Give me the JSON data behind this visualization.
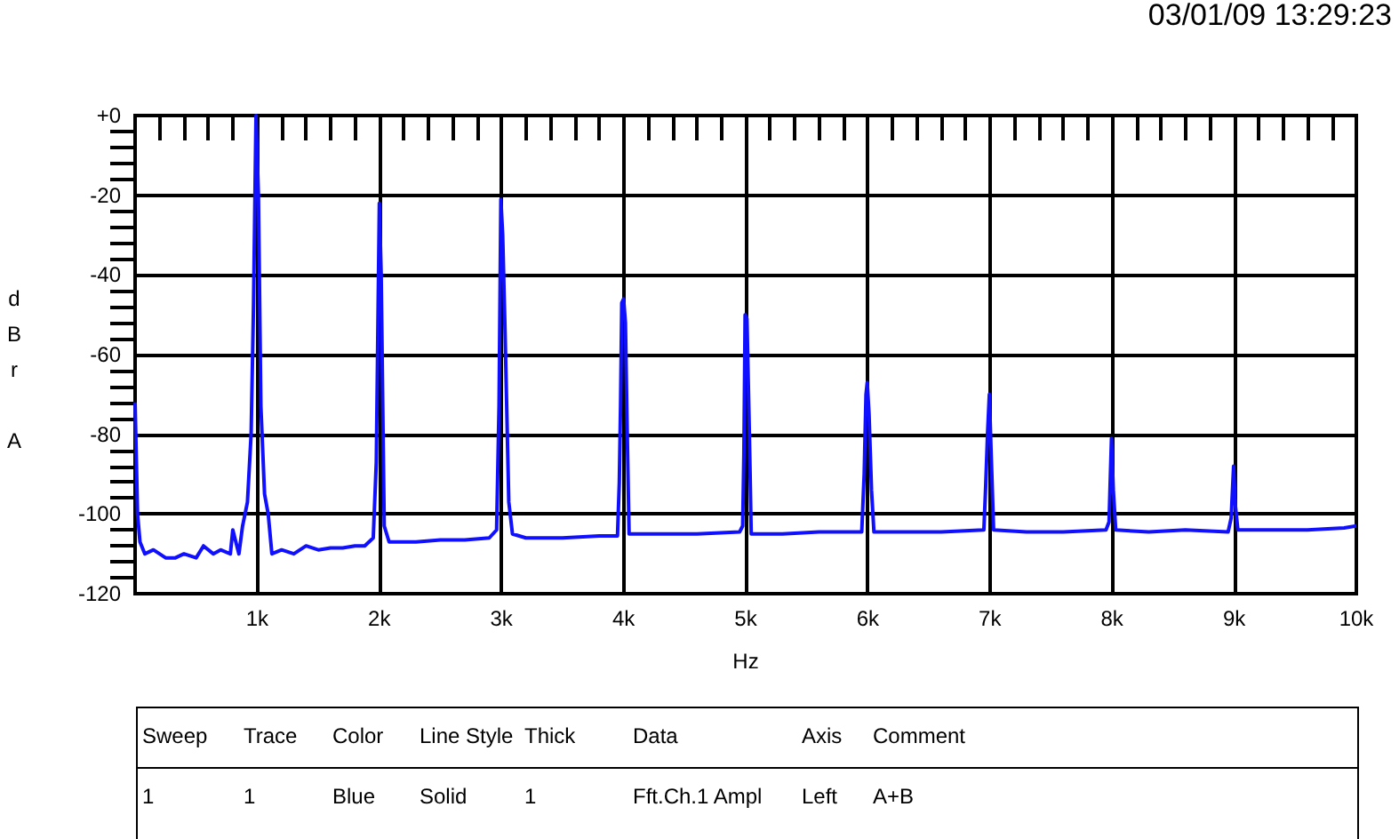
{
  "chart_data": {
    "type": "line",
    "xlabel": "Hz",
    "ylabel": "dBr A",
    "annotations": [
      "03/01/09 13:29:23",
      "Sweep",
      "Trace",
      "Color",
      "Line Style",
      "Thick",
      "Data",
      "Axis",
      "Comment",
      "1",
      "1",
      "Blue",
      "Solid",
      "1",
      "Fft.Ch.1 Ampl",
      "Left",
      "A+B"
    ],
    "xlim": [
      0,
      10000
    ],
    "ylim": [
      -120,
      0
    ],
    "xticks": [
      {
        "value": 1000,
        "label": "1k"
      },
      {
        "value": 2000,
        "label": "2k"
      },
      {
        "value": 3000,
        "label": "3k"
      },
      {
        "value": 4000,
        "label": "4k"
      },
      {
        "value": 5000,
        "label": "5k"
      },
      {
        "value": 6000,
        "label": "6k"
      },
      {
        "value": 7000,
        "label": "7k"
      },
      {
        "value": 8000,
        "label": "8k"
      },
      {
        "value": 9000,
        "label": "9k"
      },
      {
        "value": 10000,
        "label": "10k"
      }
    ],
    "yticks": [
      {
        "value": 0,
        "label": "+0"
      },
      -20,
      -40,
      -60,
      -80,
      -100,
      -120
    ],
    "grid": true,
    "marker": "none",
    "line_style": "solid",
    "series": [
      {
        "color": "#1010ff",
        "x": [
          0,
          20,
          40,
          80,
          150,
          250,
          330,
          400,
          500,
          560,
          640,
          700,
          780,
          800,
          850,
          880,
          920,
          950,
          970,
          990,
          1010,
          1030,
          1060,
          1090,
          1120,
          1200,
          1300,
          1400,
          1500,
          1600,
          1700,
          1800,
          1880,
          1950,
          1975,
          1990,
          2000,
          2015,
          2040,
          2080,
          2300,
          2500,
          2700,
          2900,
          2960,
          2980,
          2995,
          3010,
          3030,
          3060,
          3090,
          3200,
          3500,
          3800,
          3950,
          3965,
          3975,
          3985,
          4000,
          4015,
          4030,
          4045,
          4300,
          4600,
          4950,
          4975,
          4985,
          4995,
          5010,
          5030,
          5045,
          5300,
          5600,
          5950,
          5970,
          5985,
          5995,
          6010,
          6030,
          6050,
          6300,
          6600,
          6950,
          6965,
          6980,
          6995,
          7010,
          7030,
          7300,
          7600,
          7950,
          7975,
          7995,
          8010,
          8030,
          8300,
          8600,
          8950,
          8975,
          8995,
          9010,
          9030,
          9300,
          9600,
          9900,
          10000
        ],
        "values": [
          -72,
          -100,
          -107,
          -110,
          -109,
          -111,
          -111,
          -110,
          -111,
          -108,
          -110,
          -109,
          -110,
          -104,
          -110,
          -103,
          -97,
          -80,
          -47,
          0,
          -20,
          -73,
          -95,
          -100,
          -110,
          -109,
          -110,
          -108,
          -109,
          -108.5,
          -108.5,
          -108,
          -108,
          -106,
          -87,
          -48,
          -22,
          -40,
          -103,
          -107,
          -107,
          -106.5,
          -106.5,
          -106,
          -104,
          -73,
          -21,
          -30,
          -55,
          -97,
          -105,
          -106,
          -106,
          -105.5,
          -105.5,
          -92,
          -73,
          -47,
          -46,
          -52,
          -80,
          -105,
          -105,
          -105,
          -104.5,
          -103,
          -85,
          -50,
          -51,
          -80,
          -105,
          -105,
          -104.5,
          -104.5,
          -90,
          -70,
          -67,
          -75,
          -94,
          -104.5,
          -104.5,
          -104.5,
          -104,
          -93,
          -80,
          -70,
          -85,
          -104,
          -104.5,
          -104.5,
          -104,
          -102,
          -81,
          -94,
          -104,
          -104.5,
          -104,
          -104.5,
          -101,
          -88,
          -98,
          -104,
          -104,
          -104,
          -103.5,
          -103
        ]
      }
    ]
  }
}
